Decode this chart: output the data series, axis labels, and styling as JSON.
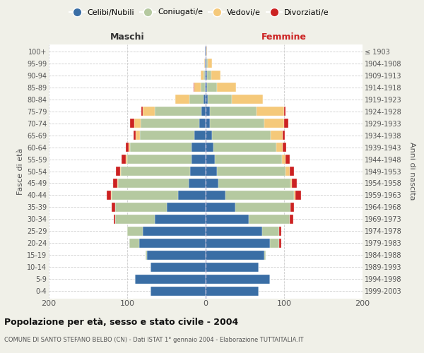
{
  "age_groups": [
    "0-4",
    "5-9",
    "10-14",
    "15-19",
    "20-24",
    "25-29",
    "30-34",
    "35-39",
    "40-44",
    "45-49",
    "50-54",
    "55-59",
    "60-64",
    "65-69",
    "70-74",
    "75-79",
    "80-84",
    "85-89",
    "90-94",
    "95-99",
    "100+"
  ],
  "birth_years": [
    "1999-2003",
    "1994-1998",
    "1989-1993",
    "1984-1988",
    "1979-1983",
    "1974-1978",
    "1969-1973",
    "1964-1968",
    "1959-1963",
    "1954-1958",
    "1949-1953",
    "1944-1948",
    "1939-1943",
    "1934-1938",
    "1929-1933",
    "1924-1928",
    "1919-1923",
    "1914-1918",
    "1909-1913",
    "1904-1908",
    "≤ 1903"
  ],
  "colors": {
    "celibi": "#3a6ea5",
    "coniugati": "#b5c9a0",
    "vedovi": "#f5c97a",
    "divorziati": "#cc2222"
  },
  "maschi": {
    "celibi": [
      70,
      90,
      70,
      75,
      85,
      80,
      65,
      50,
      35,
      22,
      20,
      18,
      18,
      14,
      8,
      5,
      3,
      1,
      1,
      1,
      1
    ],
    "coniugati": [
      0,
      0,
      0,
      2,
      12,
      20,
      50,
      65,
      85,
      90,
      88,
      82,
      78,
      70,
      75,
      60,
      18,
      5,
      2,
      0,
      0
    ],
    "vedovi": [
      0,
      0,
      0,
      0,
      0,
      0,
      0,
      0,
      1,
      1,
      1,
      2,
      2,
      5,
      8,
      15,
      18,
      8,
      3,
      1,
      0
    ],
    "divorziati": [
      0,
      0,
      0,
      0,
      0,
      0,
      2,
      5,
      5,
      5,
      5,
      5,
      4,
      3,
      5,
      2,
      0,
      1,
      0,
      0,
      0
    ]
  },
  "femmine": {
    "celibi": [
      68,
      82,
      68,
      75,
      82,
      72,
      55,
      38,
      25,
      16,
      14,
      12,
      10,
      8,
      5,
      5,
      3,
      2,
      2,
      1,
      1
    ],
    "coniugati": [
      0,
      0,
      0,
      2,
      12,
      22,
      52,
      70,
      88,
      92,
      88,
      85,
      80,
      75,
      70,
      60,
      30,
      12,
      5,
      2,
      0
    ],
    "vedovi": [
      0,
      0,
      0,
      0,
      0,
      0,
      0,
      0,
      1,
      2,
      5,
      5,
      8,
      15,
      25,
      35,
      40,
      25,
      12,
      5,
      1
    ],
    "divorziati": [
      0,
      0,
      0,
      0,
      2,
      2,
      5,
      5,
      8,
      6,
      6,
      5,
      5,
      3,
      5,
      2,
      0,
      0,
      0,
      0,
      0
    ]
  },
  "title_main": "Popolazione per età, sesso e stato civile - 2004",
  "title_sub": "COMUNE DI SANTO STEFANO BELBO (CN) - Dati ISTAT 1° gennaio 2004 - Elaborazione TUTTAITALIA.IT",
  "xlabel_left": "Maschi",
  "xlabel_right": "Femmine",
  "ylabel_left": "Fasce di età",
  "ylabel_right": "Anni di nascita",
  "xlim": 200,
  "legend_labels": [
    "Celibi/Nubili",
    "Coniugati/e",
    "Vedovi/e",
    "Divorziati/e"
  ],
  "bg_color": "#f0f0e8",
  "plot_bg": "#ffffff"
}
